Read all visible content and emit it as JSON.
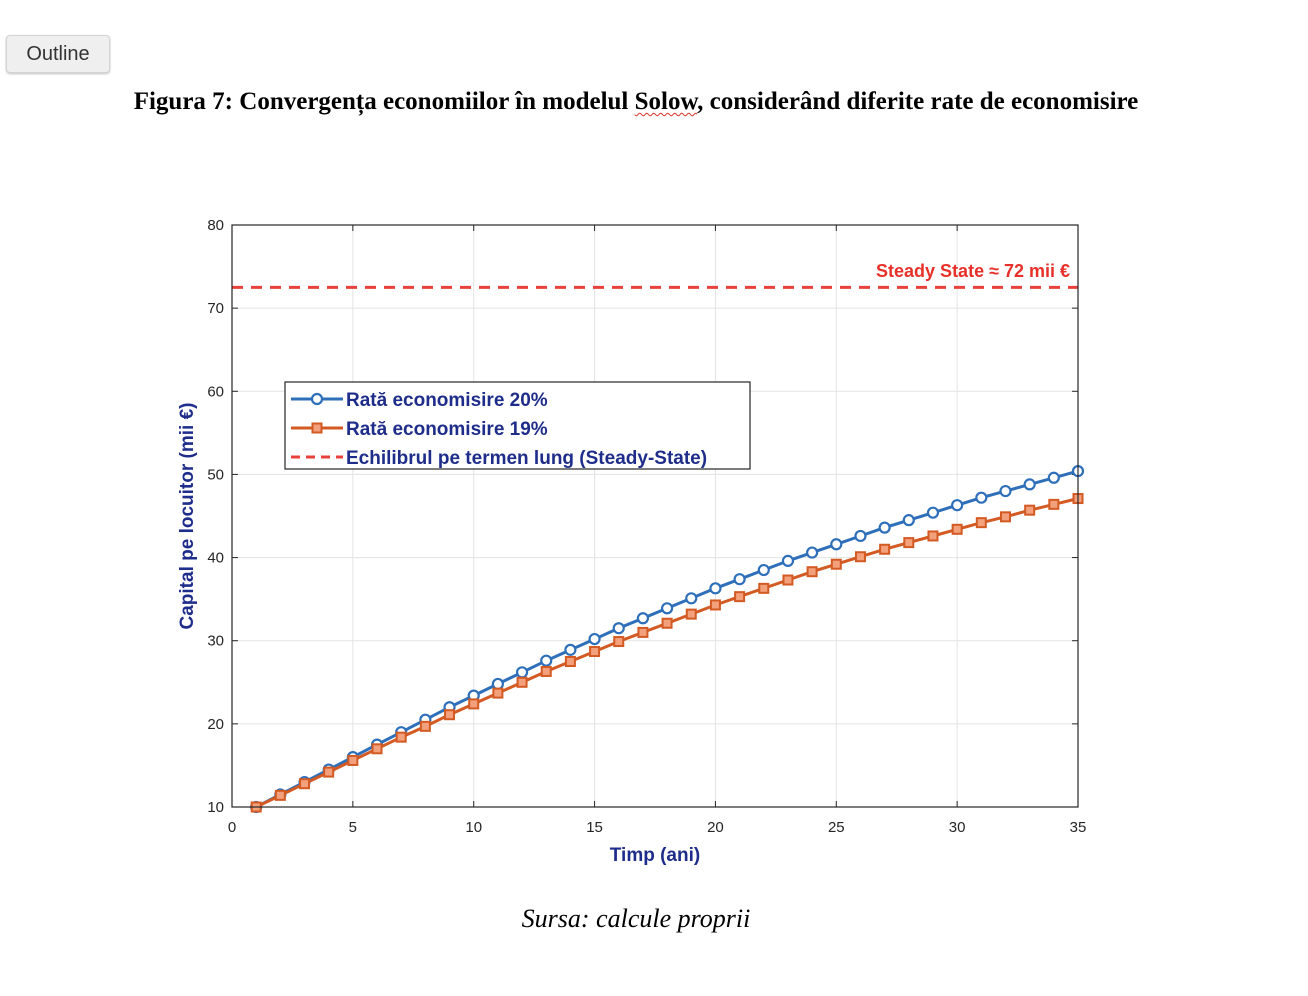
{
  "outline_button": "Outline",
  "figure": {
    "title_part1": "Figura 7: Convergența economiilor în modelul ",
    "title_flagged": "Solow",
    "title_part2": ", considerând diferite rate de economisire",
    "source": "Sursa: calcule proprii"
  },
  "chart_data": {
    "type": "line",
    "title": "",
    "xlabel": "Timp (ani)",
    "ylabel": "Capital pe locuitor (mii €)",
    "xlim": [
      0,
      35
    ],
    "ylim": [
      10,
      80
    ],
    "xticks": [
      0,
      5,
      10,
      15,
      20,
      25,
      30,
      35
    ],
    "yticks": [
      10,
      20,
      30,
      40,
      50,
      60,
      70,
      80
    ],
    "grid": true,
    "legend_position": "upper-left",
    "x": [
      1,
      2,
      3,
      4,
      5,
      6,
      7,
      8,
      9,
      10,
      11,
      12,
      13,
      14,
      15,
      16,
      17,
      18,
      19,
      20,
      21,
      22,
      23,
      24,
      25,
      26,
      27,
      28,
      29,
      30,
      31,
      32,
      33,
      34,
      35
    ],
    "series": [
      {
        "name": "Rată economisire 20%",
        "color": "#2e6fba",
        "marker": "circle",
        "values": [
          10.0,
          11.5,
          13.0,
          14.5,
          16.0,
          17.5,
          19.0,
          20.5,
          22.0,
          23.4,
          24.8,
          26.2,
          27.6,
          28.9,
          30.2,
          31.5,
          32.7,
          33.9,
          35.1,
          36.3,
          37.4,
          38.5,
          39.6,
          40.6,
          41.6,
          42.6,
          43.6,
          44.5,
          45.4,
          46.3,
          47.2,
          48.0,
          48.8,
          49.6,
          50.4
        ]
      },
      {
        "name": "Rată economisire 19%",
        "color": "#d35a22",
        "marker": "square",
        "values": [
          10.0,
          11.4,
          12.8,
          14.2,
          15.6,
          17.0,
          18.4,
          19.7,
          21.1,
          22.4,
          23.7,
          25.0,
          26.3,
          27.5,
          28.7,
          29.9,
          31.0,
          32.1,
          33.2,
          34.3,
          35.3,
          36.3,
          37.3,
          38.3,
          39.2,
          40.1,
          41.0,
          41.8,
          42.6,
          43.4,
          44.2,
          44.9,
          45.7,
          46.4,
          47.1
        ]
      },
      {
        "name": "Echilibrul pe termen lung (Steady-State)",
        "color": "#e8403a",
        "style": "dashed",
        "constant": 72.5
      }
    ],
    "annotations": [
      {
        "text": "Steady State ≈ 72 mii €",
        "color": "#e8302a"
      }
    ]
  }
}
